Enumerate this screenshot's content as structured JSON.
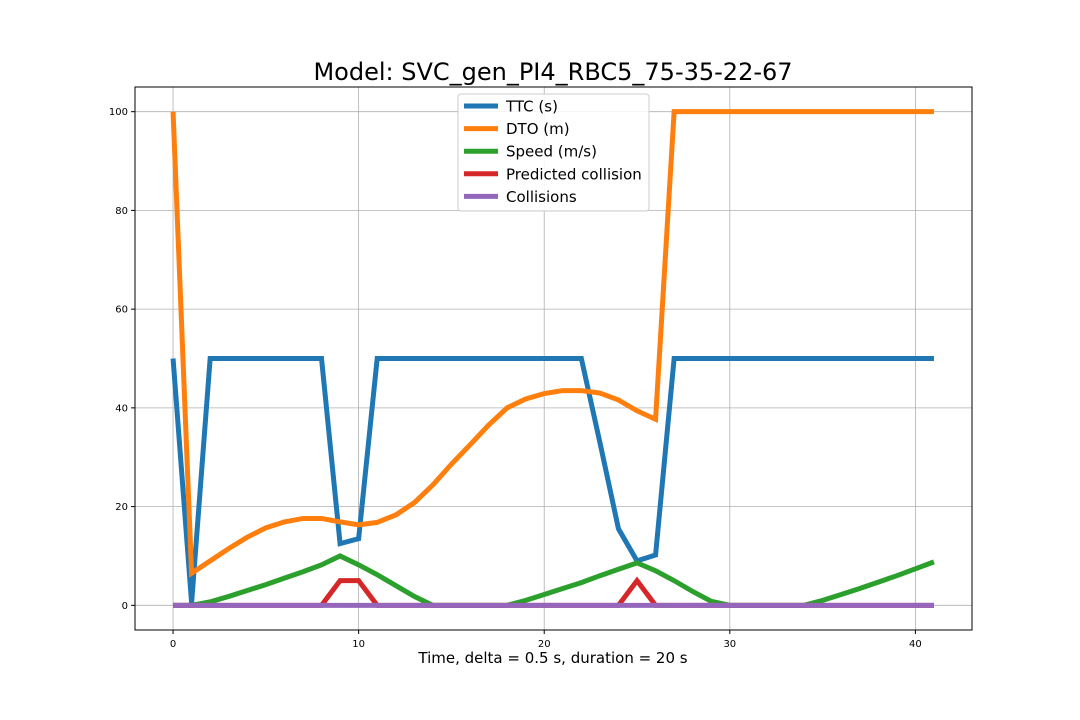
{
  "chart_data": {
    "type": "line",
    "title": "Model: SVC_gen_PI4_RBC5_75-35-22-67",
    "xlabel": "Time, delta = 0.5 s, duration = 20 s",
    "ylabel": "",
    "xlim": [
      -2.05,
      43.05
    ],
    "ylim": [
      -5,
      105
    ],
    "xticks": [
      0,
      10,
      20,
      30,
      40
    ],
    "yticks": [
      0,
      20,
      40,
      60,
      80,
      100
    ],
    "grid": true,
    "legend_position": "top-center",
    "series": [
      {
        "name": "TTC (s)",
        "color": "#1f77b4",
        "x": [
          0,
          1,
          2,
          3,
          4,
          5,
          6,
          7,
          8,
          9,
          10,
          11,
          12,
          13,
          14,
          15,
          16,
          17,
          18,
          19,
          20,
          21,
          22,
          23,
          24,
          25,
          26,
          27,
          28,
          29,
          30,
          31,
          32,
          33,
          34,
          35,
          36,
          37,
          38,
          39,
          40,
          41
        ],
        "values": [
          50,
          0.5,
          50,
          50,
          50,
          50,
          50,
          50,
          50,
          12.5,
          13.5,
          50,
          50,
          50,
          50,
          50,
          50,
          50,
          50,
          50,
          50,
          50,
          50,
          33,
          15.5,
          9,
          10.2,
          50,
          50,
          50,
          50,
          50,
          50,
          50,
          50,
          50,
          50,
          50,
          50,
          50,
          50,
          50
        ]
      },
      {
        "name": "DTO (m)",
        "color": "#ff7f0e",
        "x": [
          0,
          1,
          2,
          3,
          4,
          5,
          6,
          7,
          8,
          9,
          10,
          11,
          12,
          13,
          14,
          15,
          16,
          17,
          18,
          19,
          20,
          21,
          22,
          23,
          24,
          25,
          26,
          27,
          28,
          29,
          30,
          31,
          32,
          33,
          34,
          35,
          36,
          37,
          38,
          39,
          40,
          41
        ],
        "values": [
          100,
          6.5,
          9,
          11.5,
          13.8,
          15.7,
          16.9,
          17.6,
          17.6,
          16.9,
          16.3,
          16.8,
          18.3,
          20.8,
          24.4,
          28.6,
          32.5,
          36.5,
          40,
          41.8,
          42.9,
          43.5,
          43.5,
          43,
          41.6,
          39.4,
          37.7,
          100,
          100,
          100,
          100,
          100,
          100,
          100,
          100,
          100,
          100,
          100,
          100,
          100,
          100,
          100
        ]
      },
      {
        "name": "Speed (m/s)",
        "color": "#2ca02c",
        "x": [
          0,
          1,
          2,
          3,
          4,
          5,
          6,
          7,
          8,
          9,
          10,
          11,
          12,
          13,
          14,
          15,
          16,
          17,
          18,
          19,
          20,
          21,
          22,
          23,
          24,
          25,
          26,
          27,
          28,
          29,
          30,
          31,
          32,
          33,
          34,
          35,
          36,
          37,
          38,
          39,
          40,
          41
        ],
        "values": [
          0,
          0,
          0.7,
          1.8,
          3,
          4.2,
          5.5,
          6.8,
          8.2,
          10,
          8.2,
          6.2,
          4,
          1.8,
          0,
          0,
          0,
          0,
          0,
          1,
          2.2,
          3.4,
          4.6,
          6,
          7.3,
          8.6,
          7,
          5,
          2.8,
          0.8,
          0,
          0,
          0,
          0,
          0,
          1,
          2.2,
          3.4,
          4.7,
          6,
          7.4,
          8.8
        ]
      },
      {
        "name": "Predicted collision",
        "color": "#d62728",
        "x": [
          0,
          1,
          2,
          3,
          4,
          5,
          6,
          7,
          8,
          9,
          10,
          11,
          12,
          13,
          14,
          15,
          16,
          17,
          18,
          19,
          20,
          21,
          22,
          23,
          24,
          25,
          26,
          27,
          28,
          29,
          30,
          31,
          32,
          33,
          34,
          35,
          36,
          37,
          38,
          39,
          40,
          41
        ],
        "values": [
          0,
          0,
          0,
          0,
          0,
          0,
          0,
          0,
          0,
          5,
          5,
          0,
          0,
          0,
          0,
          0,
          0,
          0,
          0,
          0,
          0,
          0,
          0,
          0,
          0,
          5,
          0,
          0,
          0,
          0,
          0,
          0,
          0,
          0,
          0,
          0,
          0,
          0,
          0,
          0,
          0,
          0
        ]
      },
      {
        "name": "Collisions",
        "color": "#9467bd",
        "x": [
          0,
          1,
          2,
          3,
          4,
          5,
          6,
          7,
          8,
          9,
          10,
          11,
          12,
          13,
          14,
          15,
          16,
          17,
          18,
          19,
          20,
          21,
          22,
          23,
          24,
          25,
          26,
          27,
          28,
          29,
          30,
          31,
          32,
          33,
          34,
          35,
          36,
          37,
          38,
          39,
          40,
          41
        ],
        "values": [
          0,
          0,
          0,
          0,
          0,
          0,
          0,
          0,
          0,
          0,
          0,
          0,
          0,
          0,
          0,
          0,
          0,
          0,
          0,
          0,
          0,
          0,
          0,
          0,
          0,
          0,
          0,
          0,
          0,
          0,
          0,
          0,
          0,
          0,
          0,
          0,
          0,
          0,
          0,
          0,
          0,
          0
        ]
      }
    ]
  }
}
